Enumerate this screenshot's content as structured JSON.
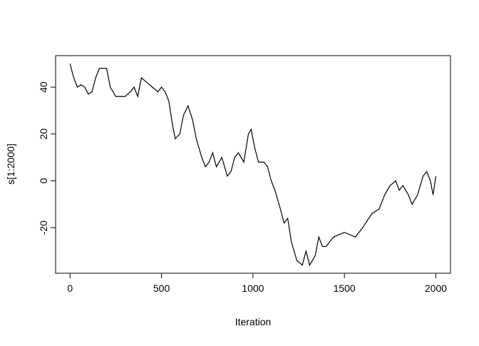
{
  "chart_data": {
    "type": "line",
    "x_label": "Iteration",
    "y_label": "s[1:2000]",
    "x": [
      0,
      20,
      40,
      60,
      80,
      100,
      120,
      140,
      160,
      200,
      220,
      250,
      300,
      330,
      350,
      370,
      390,
      420,
      450,
      480,
      500,
      520,
      540,
      560,
      575,
      600,
      620,
      645,
      670,
      690,
      720,
      740,
      760,
      780,
      800,
      830,
      860,
      880,
      900,
      920,
      950,
      975,
      990,
      1010,
      1030,
      1060,
      1080,
      1100,
      1120,
      1150,
      1170,
      1190,
      1210,
      1240,
      1270,
      1290,
      1310,
      1340,
      1360,
      1380,
      1400,
      1440,
      1500,
      1560,
      1600,
      1650,
      1690,
      1720,
      1750,
      1780,
      1800,
      1820,
      1850,
      1870,
      1900,
      1930,
      1950,
      1970,
      1985,
      2000
    ],
    "series": [
      {
        "name": "s",
        "color": "#000000",
        "values": [
          50,
          44,
          40,
          41,
          40,
          37,
          38,
          44,
          48,
          48,
          40,
          36,
          36,
          38,
          40,
          36,
          44,
          42,
          40,
          38,
          40,
          38,
          34,
          24,
          18,
          20,
          28,
          32,
          26,
          18,
          10,
          6,
          8,
          12,
          6,
          10,
          2,
          4,
          10,
          12,
          8,
          20,
          22,
          14,
          8,
          8,
          6,
          0,
          -4,
          -12,
          -18,
          -16,
          -26,
          -34,
          -36,
          -30,
          -36,
          -32,
          -24,
          -28,
          -28,
          -24,
          -22,
          -24,
          -20,
          -14,
          -12,
          -6,
          -2,
          0,
          -4,
          -2,
          -6,
          -10,
          -6,
          2,
          4,
          0,
          -6,
          2
        ]
      }
    ],
    "xlim": [
      -79,
      2080
    ],
    "ylim": [
      -39.44,
      53.44
    ],
    "xticks": [
      0,
      500,
      1000,
      1500,
      2000
    ],
    "yticks": [
      -20,
      0,
      20,
      40
    ]
  }
}
